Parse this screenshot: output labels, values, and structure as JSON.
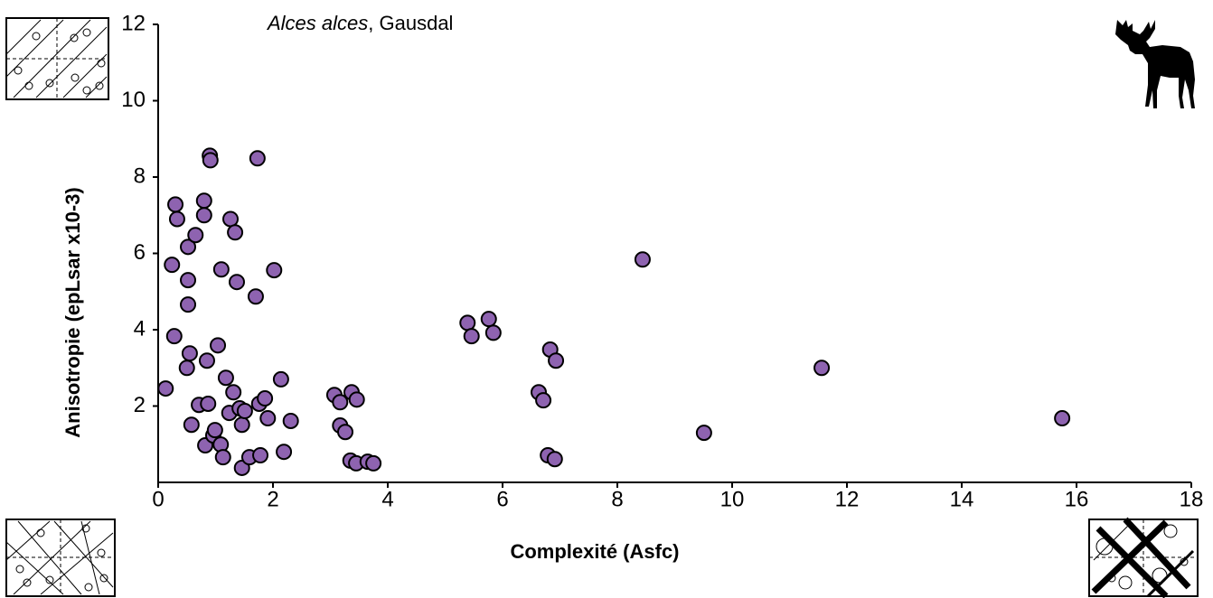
{
  "chart_data": {
    "type": "scatter",
    "title": [
      "Alces alces",
      ", Gausdal"
    ],
    "x_label": "Complexité (Asfc)",
    "y_label": "Anisotropie (epLsar x10-3)",
    "color": "#8e63b0",
    "x": [
      0.13,
      0.24,
      0.3,
      0.33,
      0.28,
      0.5,
      0.55,
      0.52,
      0.65,
      0.52,
      0.52,
      0.58,
      0.71,
      0.8,
      0.8,
      0.9,
      0.91,
      0.85,
      0.87,
      0.82,
      0.96,
      0.99,
      1.04,
      1.1,
      1.09,
      1.13,
      1.18,
      1.24,
      1.26,
      1.34,
      1.37,
      1.31,
      1.42,
      1.46,
      1.46,
      1.51,
      1.59,
      1.7,
      1.73,
      1.76,
      1.78,
      1.86,
      1.91,
      2.02,
      2.14,
      2.19,
      2.31,
      3.07,
      3.17,
      3.17,
      3.26,
      3.35,
      3.37,
      3.45,
      3.46,
      3.65,
      3.75,
      5.39,
      5.46,
      5.76,
      5.84,
      6.63,
      6.71,
      6.79,
      6.83,
      6.91,
      6.93,
      8.44,
      9.51,
      11.56,
      15.75
    ],
    "values": [
      2.46,
      5.7,
      7.28,
      6.9,
      3.83,
      3.0,
      3.38,
      6.17,
      6.48,
      5.3,
      4.66,
      1.51,
      2.03,
      7.38,
      7.0,
      8.56,
      8.44,
      3.19,
      2.06,
      0.97,
      1.23,
      1.37,
      3.59,
      5.58,
      0.99,
      0.66,
      2.74,
      1.82,
      6.9,
      6.55,
      5.25,
      2.36,
      1.94,
      1.51,
      0.38,
      1.87,
      0.66,
      4.87,
      8.49,
      2.06,
      0.71,
      2.2,
      1.68,
      5.56,
      2.7,
      0.8,
      1.61,
      2.29,
      2.1,
      1.49,
      1.32,
      0.57,
      2.36,
      0.5,
      2.17,
      0.54,
      0.5,
      4.18,
      3.83,
      4.28,
      3.92,
      2.36,
      2.15,
      0.71,
      3.48,
      0.61,
      3.19,
      5.84,
      1.3,
      3.0,
      1.68
    ],
    "xlim": [
      0,
      18
    ],
    "xticks": [
      0,
      2,
      4,
      6,
      8,
      10,
      12,
      14,
      16,
      18
    ],
    "ylim": [
      0,
      12
    ],
    "yticks": [
      2,
      4,
      6,
      8,
      10,
      12
    ]
  }
}
